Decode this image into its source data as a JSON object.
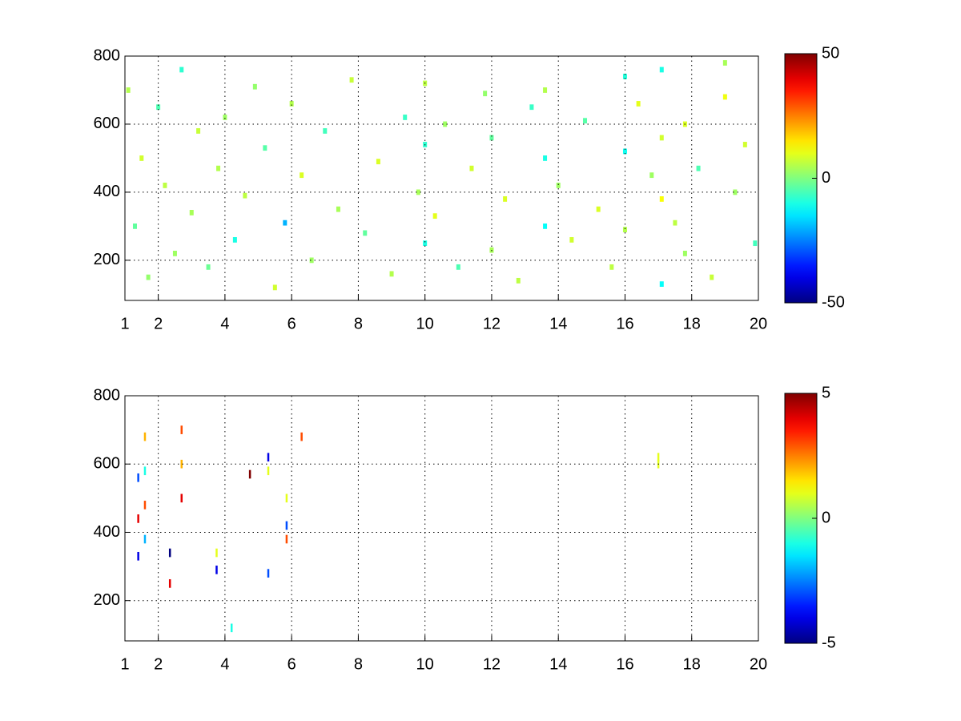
{
  "chart_data": [
    {
      "type": "heatmap",
      "xlim": [
        1,
        20
      ],
      "xticks": [
        1,
        2,
        4,
        6,
        8,
        10,
        12,
        14,
        16,
        18,
        20
      ],
      "ylim": [
        82,
        800
      ],
      "yticks": [
        200,
        400,
        600,
        800
      ],
      "clim": [
        -50,
        50
      ],
      "cticks": [
        -50,
        0,
        50
      ],
      "grid": true,
      "colormap": "jet",
      "x": [
        1.1,
        1.3,
        1.5,
        1.7,
        2.0,
        2.2,
        2.5,
        2.7,
        3.0,
        3.2,
        3.5,
        3.8,
        4.0,
        4.3,
        4.6,
        4.9,
        5.2,
        5.5,
        5.8,
        6.0,
        6.3,
        6.6,
        7.0,
        7.4,
        7.8,
        8.2,
        8.6,
        9.0,
        9.4,
        9.8,
        10.0,
        10.0,
        10.0,
        10.3,
        10.6,
        11.0,
        11.4,
        11.8,
        12.0,
        12.0,
        12.4,
        12.8,
        13.2,
        13.6,
        13.6,
        13.6,
        14.0,
        14.4,
        14.8,
        15.2,
        15.6,
        16.0,
        16.0,
        16.0,
        16.4,
        16.8,
        17.1,
        17.1,
        17.1,
        17.1,
        17.5,
        17.8,
        17.8,
        18.2,
        18.6,
        19.0,
        19.3,
        19.6,
        19.9,
        19.0
      ],
      "y": [
        700,
        300,
        500,
        150,
        650,
        420,
        220,
        760,
        340,
        580,
        180,
        470,
        620,
        260,
        390,
        710,
        530,
        120,
        310,
        660,
        450,
        200,
        580,
        350,
        730,
        280,
        490,
        160,
        620,
        400,
        250,
        540,
        720,
        330,
        600,
        180,
        470,
        690,
        230,
        560,
        380,
        140,
        650,
        300,
        500,
        700,
        420,
        260,
        610,
        350,
        180,
        520,
        740,
        290,
        660,
        450,
        130,
        380,
        560,
        760,
        310,
        220,
        600,
        470,
        150,
        680,
        400,
        540,
        250,
        780
      ],
      "values": [
        5,
        -3,
        8,
        2,
        -5,
        6,
        3,
        -8,
        4,
        7,
        -2,
        5,
        3,
        -10,
        6,
        2,
        -4,
        8,
        -20,
        5,
        9,
        3,
        -6,
        4,
        7,
        -3,
        9,
        5,
        -7,
        4,
        -10,
        -8,
        6,
        10,
        3,
        -5,
        8,
        2,
        4,
        -3,
        9,
        6,
        -7,
        -12,
        -10,
        5,
        3,
        8,
        -4,
        9,
        6,
        -11,
        -9,
        5,
        10,
        3,
        -12,
        12,
        8,
        -10,
        6,
        3,
        9,
        -5,
        7,
        11,
        3,
        8,
        -6,
        4
      ]
    },
    {
      "type": "heatmap",
      "xlim": [
        1,
        20
      ],
      "xticks": [
        1,
        2,
        4,
        6,
        8,
        10,
        12,
        14,
        16,
        18,
        20
      ],
      "ylim": [
        82,
        800
      ],
      "yticks": [
        200,
        400,
        600,
        800
      ],
      "clim": [
        -5,
        5
      ],
      "cticks": [
        -5,
        0,
        5
      ],
      "grid": true,
      "colormap": "jet",
      "x": [
        1.4,
        1.4,
        1.4,
        1.6,
        1.6,
        1.6,
        1.6,
        2.35,
        2.35,
        2.7,
        2.7,
        2.7,
        3.75,
        3.75,
        4.2,
        4.75,
        5.3,
        5.3,
        5.3,
        5.85,
        5.85,
        5.85,
        6.3,
        17.0,
        17.0
      ],
      "y": [
        560,
        440,
        330,
        680,
        580,
        480,
        380,
        340,
        250,
        700,
        600,
        500,
        340,
        290,
        120,
        570,
        620,
        580,
        280,
        500,
        420,
        380,
        680,
        620,
        600
      ],
      "values": [
        -3,
        4,
        -4,
        2,
        -1,
        3,
        -2,
        -5,
        4,
        3,
        2,
        4,
        1,
        -4,
        -1,
        5,
        -4,
        1,
        -3,
        1,
        -3,
        3,
        3,
        1,
        1
      ]
    }
  ]
}
